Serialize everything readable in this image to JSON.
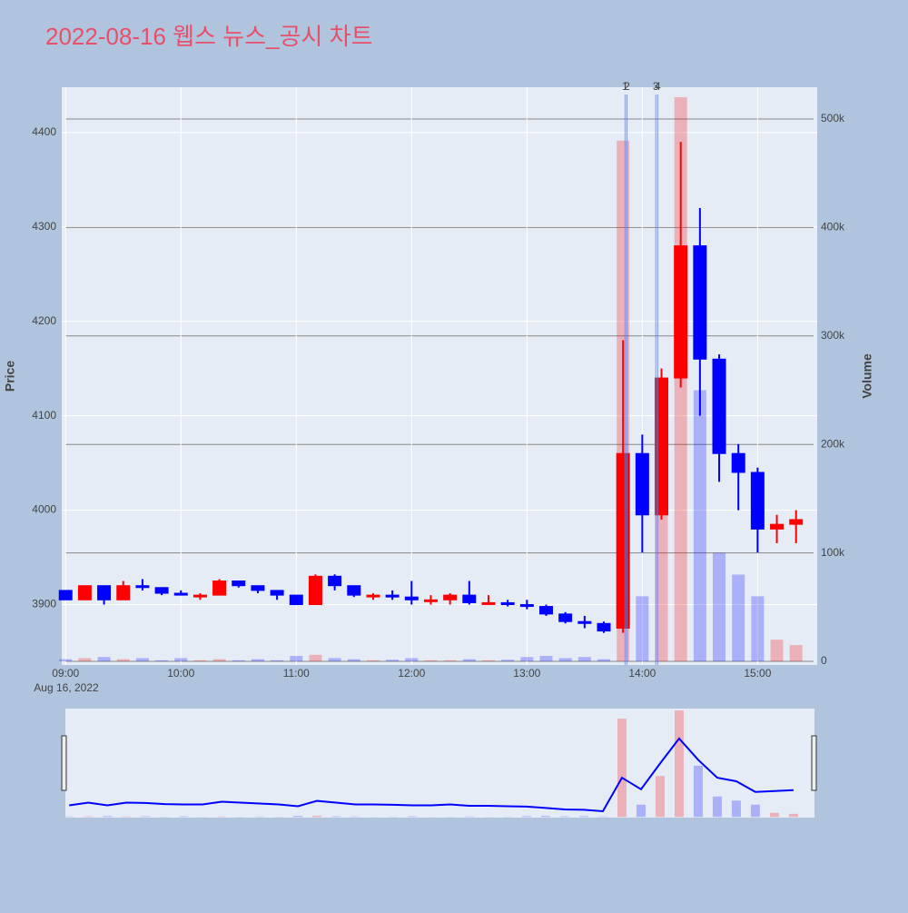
{
  "chart_data": {
    "type": "candlestick",
    "title": "2022-08-16 웹스 뉴스_공시 차트",
    "y_label": "Price",
    "y2_label": "Volume",
    "x_date_label": "Aug 16, 2022",
    "increasing_color": "#ff0000",
    "decreasing_color": "#0000ff",
    "x": [
      "2022-08-16 09:00",
      "2022-08-16 09:10",
      "2022-08-16 09:20",
      "2022-08-16 09:30",
      "2022-08-16 09:40",
      "2022-08-16 09:50",
      "2022-08-16 10:00",
      "2022-08-16 10:10",
      "2022-08-16 10:20",
      "2022-08-16 10:30",
      "2022-08-16 10:40",
      "2022-08-16 10:50",
      "2022-08-16 11:00",
      "2022-08-16 11:10",
      "2022-08-16 11:20",
      "2022-08-16 11:30",
      "2022-08-16 11:40",
      "2022-08-16 11:50",
      "2022-08-16 12:00",
      "2022-08-16 12:10",
      "2022-08-16 12:20",
      "2022-08-16 12:30",
      "2022-08-16 12:40",
      "2022-08-16 12:50",
      "2022-08-16 13:00",
      "2022-08-16 13:10",
      "2022-08-16 13:20",
      "2022-08-16 13:30",
      "2022-08-16 13:40",
      "2022-08-16 13:50",
      "2022-08-16 14:00",
      "2022-08-16 14:10",
      "2022-08-16 14:20",
      "2022-08-16 14:30",
      "2022-08-16 14:40",
      "2022-08-16 14:50",
      "2022-08-16 15:00",
      "2022-08-16 15:10",
      "2022-08-16 15:20"
    ],
    "open": [
      3915,
      3905,
      3920,
      3905,
      3920,
      3918,
      3912,
      3910,
      3910,
      3925,
      3920,
      3915,
      3910,
      3900,
      3930,
      3920,
      3910,
      3910,
      3908,
      3905,
      3905,
      3910,
      3902,
      3902,
      3900,
      3898,
      3890,
      3882,
      3880,
      3875,
      4060,
      3995,
      4140,
      4280,
      4160,
      4060,
      4040,
      3980,
      3985
    ],
    "high": [
      3915,
      3920,
      3920,
      3925,
      3927,
      3918,
      3915,
      3912,
      3927,
      3925,
      3920,
      3915,
      3910,
      3932,
      3932,
      3920,
      3912,
      3915,
      3925,
      3910,
      3912,
      3925,
      3910,
      3905,
      3905,
      3900,
      3892,
      3888,
      3882,
      4180,
      4080,
      4150,
      4390,
      4320,
      4165,
      4070,
      4045,
      3995,
      4000
    ],
    "low": [
      3905,
      3905,
      3900,
      3905,
      3915,
      3910,
      3910,
      3905,
      3910,
      3918,
      3912,
      3905,
      3900,
      3900,
      3915,
      3908,
      3905,
      3905,
      3900,
      3900,
      3900,
      3900,
      3900,
      3898,
      3895,
      3888,
      3880,
      3875,
      3870,
      3870,
      3955,
      3990,
      4130,
      4100,
      4030,
      4000,
      3955,
      3965,
      3965
    ],
    "close": [
      3905,
      3920,
      3905,
      3920,
      3918,
      3912,
      3910,
      3910,
      3925,
      3920,
      3915,
      3910,
      3900,
      3930,
      3920,
      3910,
      3910,
      3908,
      3905,
      3905,
      3910,
      3902,
      3902,
      3900,
      3898,
      3890,
      3882,
      3880,
      3872,
      4060,
      3995,
      4140,
      4280,
      4160,
      4060,
      4040,
      3980,
      3985,
      3990
    ],
    "volume": [
      2000,
      3000,
      4000,
      2000,
      3000,
      1000,
      3000,
      1000,
      2000,
      1000,
      2000,
      1000,
      5000,
      6000,
      3000,
      2000,
      1000,
      1500,
      3000,
      1000,
      1000,
      2000,
      1000,
      1500,
      4000,
      5000,
      3000,
      4000,
      2000,
      480000,
      60000,
      200000,
      520000,
      250000,
      100000,
      80000,
      60000,
      20000,
      15000
    ],
    "xlim": [
      "2022-08-16 08:58",
      "2022-08-16 15:31"
    ],
    "xticks": [
      {
        "value": "2022-08-16 09:00",
        "label": "09:00"
      },
      {
        "value": "2022-08-16 10:00",
        "label": "10:00"
      },
      {
        "value": "2022-08-16 11:00",
        "label": "11:00"
      },
      {
        "value": "2022-08-16 12:00",
        "label": "12:00"
      },
      {
        "value": "2022-08-16 13:00",
        "label": "13:00"
      },
      {
        "value": "2022-08-16 14:00",
        "label": "14:00"
      },
      {
        "value": "2022-08-16 15:00",
        "label": "15:00"
      }
    ],
    "ylim": [
      3836,
      4448
    ],
    "yticks": [
      3900,
      4000,
      4100,
      4200,
      4300,
      4400
    ],
    "y2lim": [
      -3350,
      529300
    ],
    "y2ticks": [
      0,
      {
        "value": 100000,
        "label": "100k"
      },
      {
        "value": 200000,
        "label": "200k"
      },
      {
        "value": 300000,
        "label": "300k"
      },
      {
        "value": 400000,
        "label": "400k"
      },
      {
        "value": 500000,
        "label": "500k"
      }
    ],
    "annotations": [
      {
        "x": "2022-08-16 13:51",
        "text": "1"
      },
      {
        "x": "2022-08-16 13:52",
        "text": "2"
      },
      {
        "x": "2022-08-16 14:07",
        "text": "3"
      },
      {
        "x": "2022-08-16 14:08",
        "text": "4"
      }
    ],
    "grid": true
  }
}
